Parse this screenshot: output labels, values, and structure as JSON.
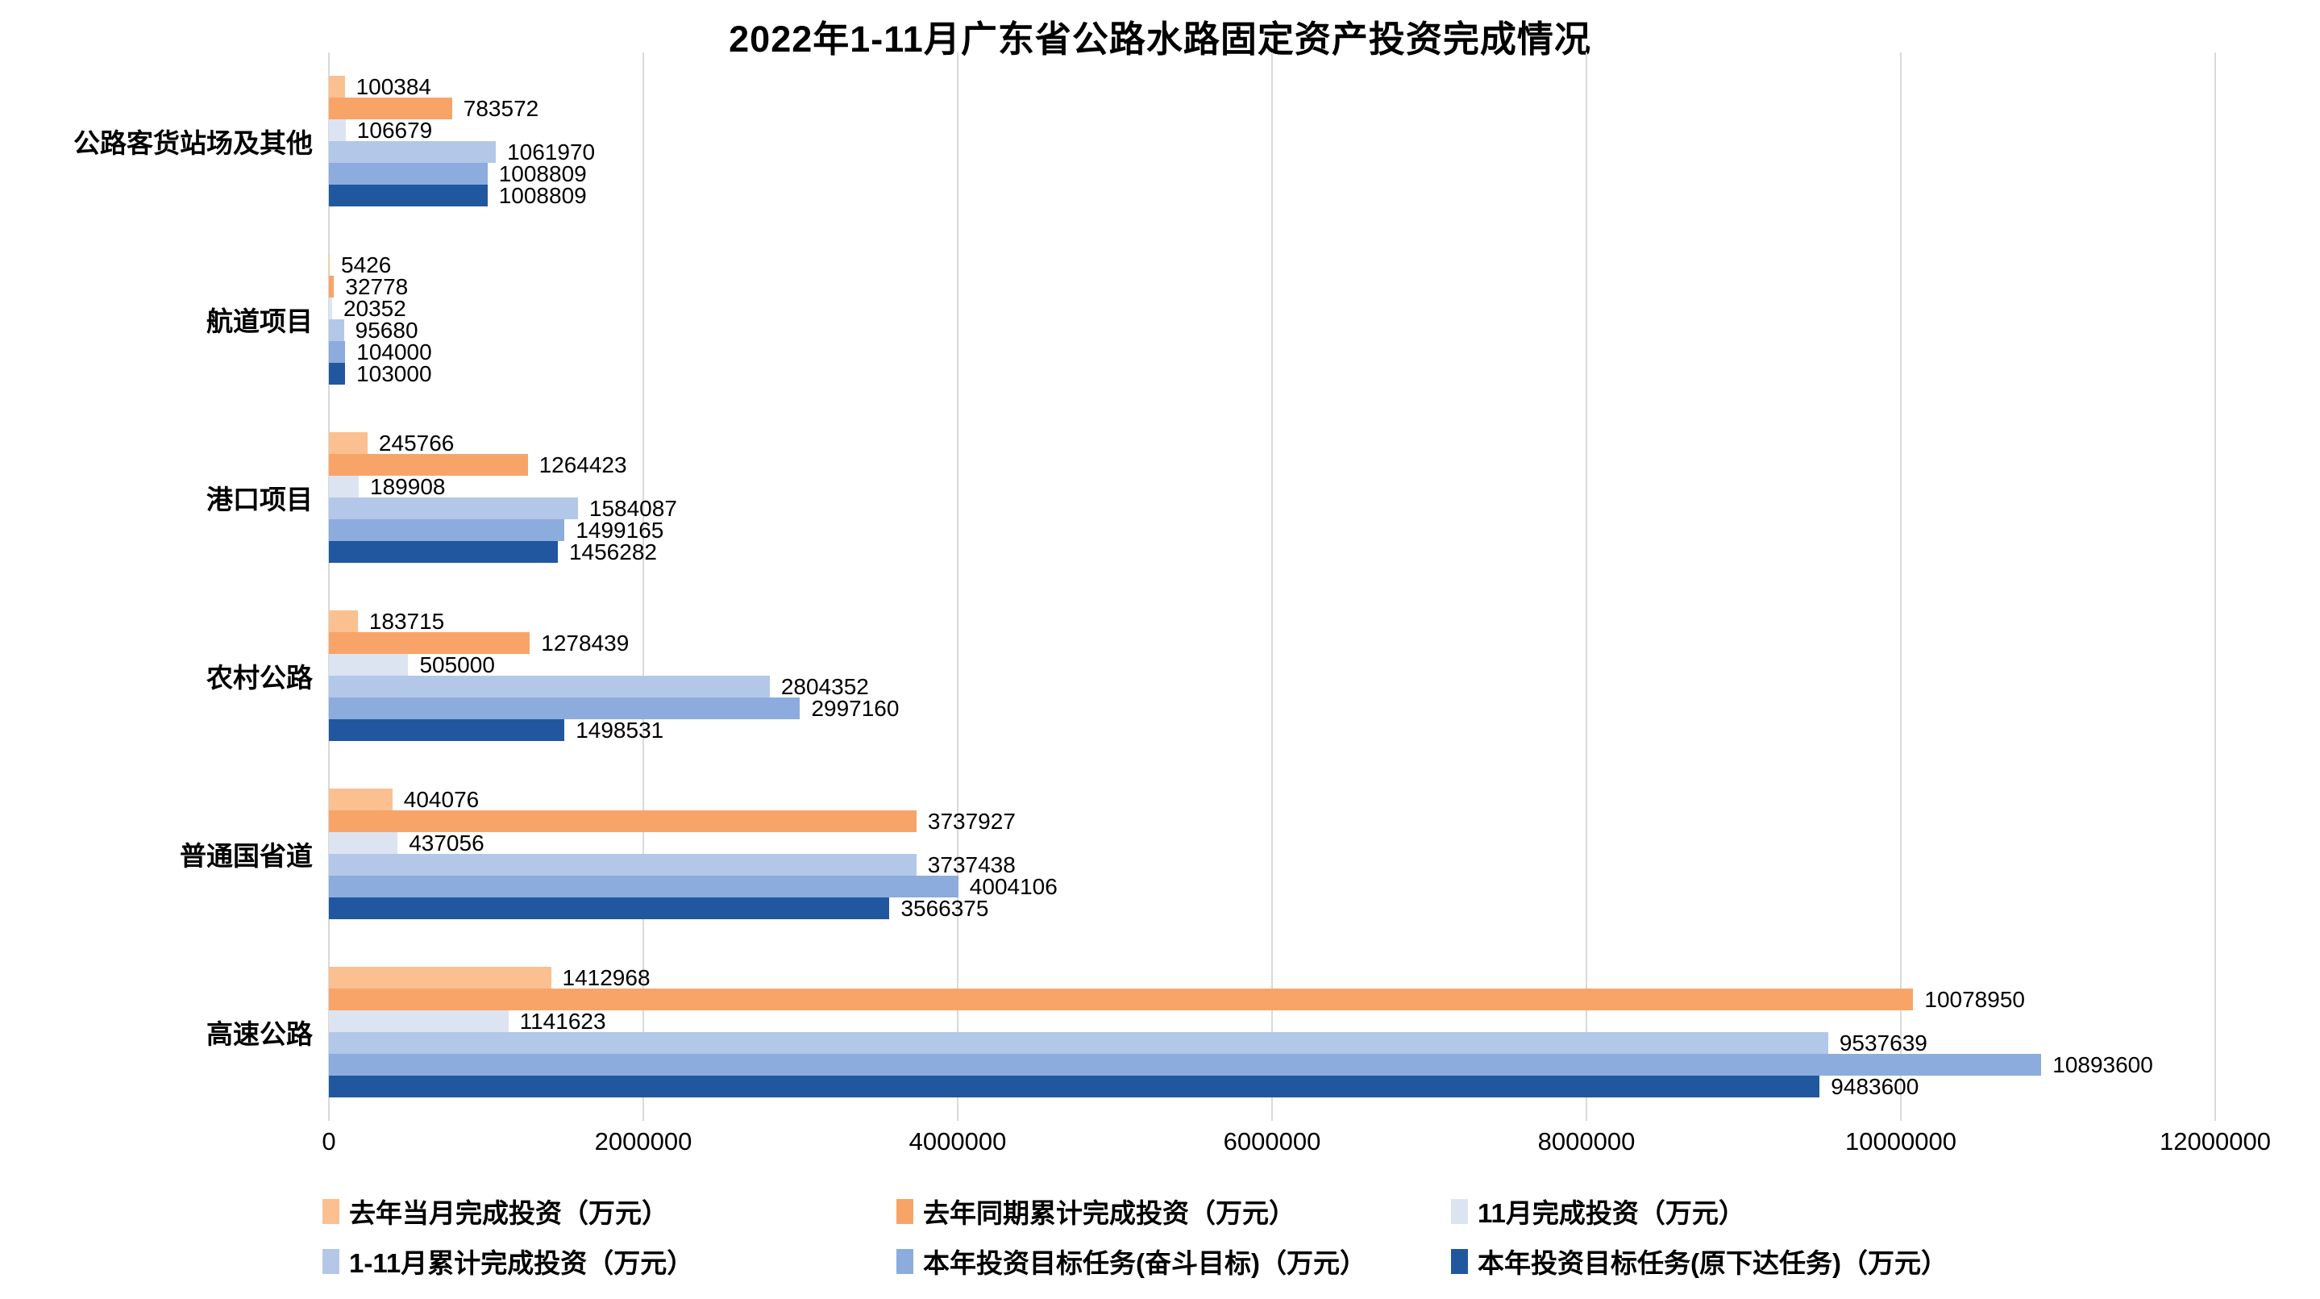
{
  "title": "2022年1-11月广东省公路水路固定资产投资完成情况",
  "chart_data": {
    "type": "bar",
    "orientation": "horizontal",
    "title": "2022年1-11月广东省公路水路固定资产投资完成情况",
    "categories": [
      "公路客货站场及其他",
      "航道项目",
      "港口项目",
      "农村公路",
      "普通国省道",
      "高速公路"
    ],
    "series": [
      {
        "name": "去年当月完成投资（万元）",
        "color": "#FAC090",
        "values": [
          100384,
          5426,
          245766,
          183715,
          404076,
          1412968
        ]
      },
      {
        "name": "去年同期累计完成投资（万元）",
        "color": "#F8A468",
        "values": [
          783572,
          32778,
          1264423,
          1278439,
          3737927,
          10078950
        ]
      },
      {
        "name": "11月完成投资（万元）",
        "color": "#DCE4F2",
        "values": [
          106679,
          20352,
          189908,
          505000,
          437056,
          1141623
        ]
      },
      {
        "name": "1-11月累计完成投资（万元）",
        "color": "#B3C7E8",
        "values": [
          1061970,
          95680,
          1584087,
          2804352,
          3737438,
          9537639
        ]
      },
      {
        "name": "本年投资目标任务(奋斗目标)（万元）",
        "color": "#8BACDC",
        "values": [
          1008809,
          104000,
          1499165,
          2997160,
          4004106,
          10893600
        ]
      },
      {
        "name": "本年投资目标任务(原下达任务)（万元）",
        "color": "#21579F",
        "values": [
          1008809,
          103000,
          1456282,
          1498531,
          3566375,
          9483600
        ]
      }
    ],
    "x_ticks": [
      "0",
      "2000000",
      "4000000",
      "6000000",
      "8000000",
      "10000000",
      "12000000"
    ],
    "xlim": [
      0,
      12000000
    ],
    "grid": true,
    "data_labels": true,
    "legend_position": "bottom"
  },
  "colors": {
    "gridline": "#d9d9d9",
    "text": "#000000",
    "background": "#ffffff"
  }
}
